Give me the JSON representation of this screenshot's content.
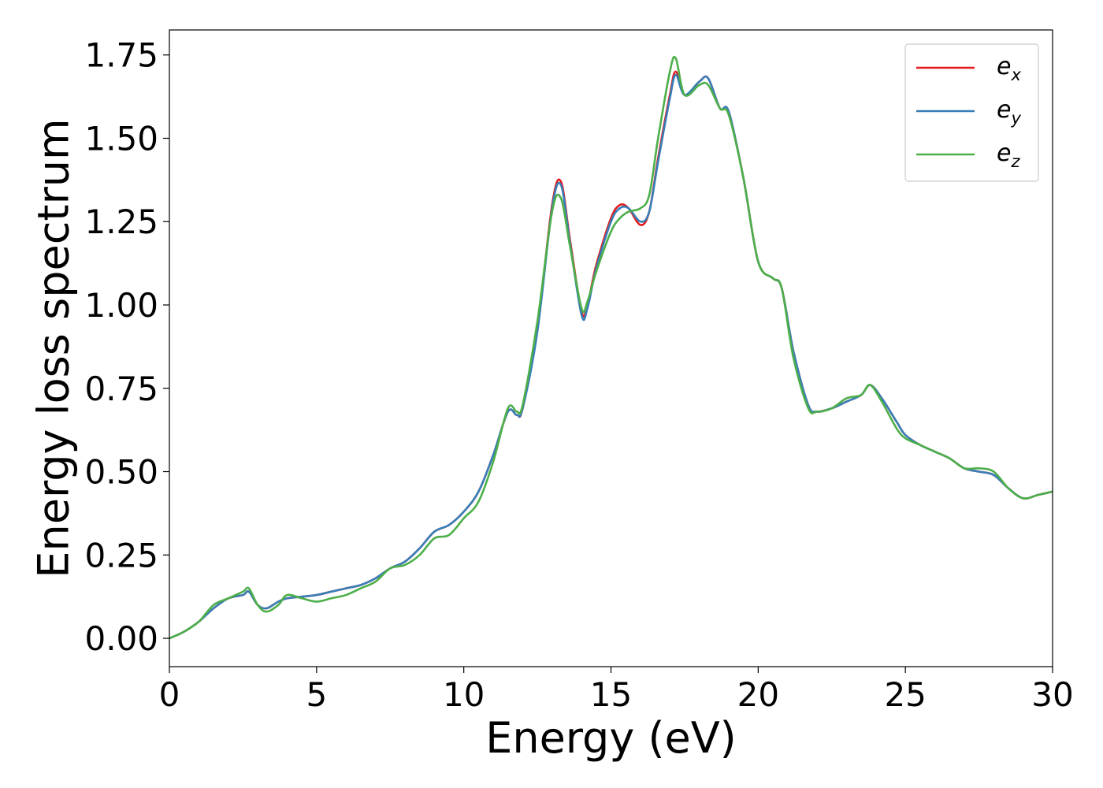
{
  "chart_data": {
    "type": "line",
    "title": "",
    "xlabel": "Energy (eV)",
    "ylabel": "Energy loss spectrum",
    "xlim": [
      0,
      30
    ],
    "ylim": [
      -0.085,
      1.825
    ],
    "xticks": [
      0,
      5,
      10,
      15,
      20,
      25,
      30
    ],
    "xtick_labels": [
      "0",
      "5",
      "10",
      "15",
      "20",
      "25",
      "30"
    ],
    "yticks": [
      0.0,
      0.25,
      0.5,
      0.75,
      1.0,
      1.25,
      1.5,
      1.75
    ],
    "ytick_labels": [
      "0.00",
      "0.25",
      "0.50",
      "0.75",
      "1.00",
      "1.25",
      "1.50",
      "1.75"
    ],
    "grid": false,
    "legend_position": "top-right",
    "series": [
      {
        "name": "e_x",
        "label_main": "e",
        "label_sub": "x",
        "color": "#e41a1c",
        "x": [
          0,
          0.5,
          1,
          1.5,
          2,
          2.5,
          2.7,
          3,
          3.3,
          3.7,
          4,
          4.5,
          5,
          5.5,
          6,
          6.5,
          7,
          7.5,
          8,
          8.5,
          9,
          9.5,
          10,
          10.5,
          11,
          11.5,
          11.8,
          12,
          12.5,
          13,
          13.3,
          13.6,
          14,
          14.2,
          14.5,
          15,
          15.3,
          15.6,
          16,
          16.3,
          16.6,
          17,
          17.2,
          17.5,
          18,
          18.3,
          18.7,
          19,
          19.5,
          20,
          20.5,
          20.8,
          21.2,
          21.7,
          22,
          22.5,
          23,
          23.5,
          23.8,
          24.2,
          24.7,
          25,
          25.5,
          26,
          26.5,
          27,
          27.5,
          28,
          28.5,
          29,
          29.5,
          30
        ],
        "y": [
          0.0,
          0.02,
          0.05,
          0.09,
          0.12,
          0.13,
          0.14,
          0.1,
          0.09,
          0.11,
          0.12,
          0.125,
          0.13,
          0.14,
          0.15,
          0.16,
          0.18,
          0.21,
          0.23,
          0.27,
          0.32,
          0.34,
          0.38,
          0.44,
          0.55,
          0.68,
          0.67,
          0.69,
          0.93,
          1.3,
          1.37,
          1.2,
          0.98,
          1.0,
          1.12,
          1.26,
          1.3,
          1.29,
          1.24,
          1.28,
          1.44,
          1.63,
          1.7,
          1.63,
          1.67,
          1.68,
          1.59,
          1.58,
          1.38,
          1.13,
          1.08,
          1.05,
          0.86,
          0.7,
          0.68,
          0.69,
          0.71,
          0.73,
          0.76,
          0.72,
          0.65,
          0.61,
          0.58,
          0.56,
          0.54,
          0.51,
          0.5,
          0.49,
          0.45,
          0.42,
          0.43,
          0.44
        ]
      },
      {
        "name": "e_y",
        "label_main": "e",
        "label_sub": "y",
        "color": "#377eb8",
        "x": [
          0,
          0.5,
          1,
          1.5,
          2,
          2.5,
          2.7,
          3,
          3.3,
          3.7,
          4,
          4.5,
          5,
          5.5,
          6,
          6.5,
          7,
          7.5,
          8,
          8.5,
          9,
          9.5,
          10,
          10.5,
          11,
          11.5,
          11.8,
          12,
          12.5,
          13,
          13.3,
          13.6,
          14,
          14.2,
          14.5,
          15,
          15.3,
          15.6,
          16,
          16.3,
          16.6,
          17,
          17.2,
          17.5,
          18,
          18.3,
          18.7,
          19,
          19.5,
          20,
          20.5,
          20.8,
          21.2,
          21.7,
          22,
          22.5,
          23,
          23.5,
          23.8,
          24.2,
          24.7,
          25,
          25.5,
          26,
          26.5,
          27,
          27.5,
          28,
          28.5,
          29,
          29.5,
          30
        ],
        "y": [
          0.0,
          0.02,
          0.05,
          0.09,
          0.12,
          0.13,
          0.14,
          0.1,
          0.09,
          0.11,
          0.12,
          0.125,
          0.13,
          0.14,
          0.15,
          0.16,
          0.18,
          0.21,
          0.23,
          0.27,
          0.32,
          0.34,
          0.38,
          0.44,
          0.55,
          0.68,
          0.67,
          0.69,
          0.92,
          1.29,
          1.36,
          1.19,
          0.97,
          0.99,
          1.11,
          1.25,
          1.29,
          1.29,
          1.25,
          1.28,
          1.43,
          1.62,
          1.69,
          1.63,
          1.67,
          1.68,
          1.59,
          1.58,
          1.38,
          1.13,
          1.08,
          1.05,
          0.86,
          0.7,
          0.68,
          0.69,
          0.71,
          0.73,
          0.76,
          0.72,
          0.65,
          0.61,
          0.58,
          0.56,
          0.54,
          0.51,
          0.5,
          0.49,
          0.45,
          0.42,
          0.43,
          0.44
        ]
      },
      {
        "name": "e_z",
        "label_main": "e",
        "label_sub": "z",
        "color": "#4daf4a",
        "x": [
          0,
          0.5,
          1,
          1.5,
          2,
          2.5,
          2.7,
          3,
          3.3,
          3.7,
          4,
          4.5,
          5,
          5.5,
          6,
          6.5,
          7,
          7.5,
          8,
          8.5,
          9,
          9.5,
          10,
          10.5,
          11,
          11.5,
          11.8,
          12,
          12.5,
          13,
          13.3,
          13.6,
          14,
          14.2,
          14.5,
          15,
          15.3,
          15.6,
          16,
          16.3,
          16.6,
          17,
          17.2,
          17.5,
          18,
          18.3,
          18.7,
          19,
          19.5,
          20,
          20.5,
          20.8,
          21.2,
          21.7,
          22,
          22.5,
          23,
          23.5,
          23.8,
          24.2,
          24.7,
          25,
          25.5,
          26,
          26.5,
          27,
          27.5,
          28,
          28.5,
          29,
          29.5,
          30
        ],
        "y": [
          0.0,
          0.02,
          0.05,
          0.1,
          0.12,
          0.14,
          0.15,
          0.1,
          0.08,
          0.1,
          0.13,
          0.12,
          0.11,
          0.12,
          0.13,
          0.15,
          0.17,
          0.21,
          0.22,
          0.25,
          0.3,
          0.31,
          0.36,
          0.41,
          0.53,
          0.69,
          0.68,
          0.7,
          0.95,
          1.28,
          1.32,
          1.18,
          0.99,
          1.01,
          1.1,
          1.22,
          1.26,
          1.28,
          1.29,
          1.33,
          1.5,
          1.7,
          1.74,
          1.63,
          1.66,
          1.66,
          1.59,
          1.57,
          1.38,
          1.13,
          1.08,
          1.05,
          0.84,
          0.69,
          0.68,
          0.69,
          0.72,
          0.73,
          0.76,
          0.71,
          0.63,
          0.6,
          0.58,
          0.56,
          0.54,
          0.51,
          0.51,
          0.5,
          0.45,
          0.42,
          0.43,
          0.44
        ]
      }
    ]
  }
}
